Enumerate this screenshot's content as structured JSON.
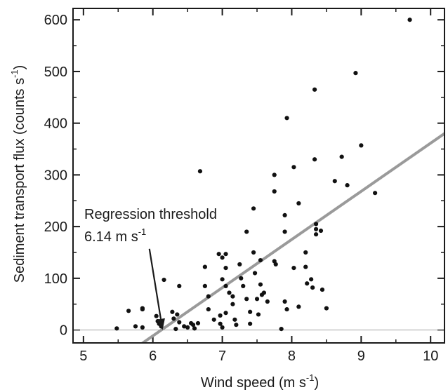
{
  "chart_data": {
    "type": "scatter",
    "xlabel": "Wind speed (m s",
    "xlabel_sup": "-1",
    "xlabel_end": ")",
    "ylabel": "Sediment transport flux (counts s",
    "ylabel_sup": "-1",
    "ylabel_end": ")",
    "xlim": [
      4.85,
      10.2
    ],
    "ylim": [
      -25,
      622
    ],
    "xticks": [
      5,
      6,
      7,
      8,
      9,
      10
    ],
    "xtick_labels": [
      "5",
      "6",
      "7",
      "8",
      "9",
      "10"
    ],
    "yticks": [
      0,
      100,
      200,
      300,
      400,
      500,
      600
    ],
    "ytick_labels": [
      "0",
      "100",
      "200",
      "300",
      "400",
      "500",
      "600"
    ],
    "grid": false,
    "zero_line": true,
    "regression": {
      "x": [
        5.8,
        10.2
      ],
      "y": [
        -30,
        380
      ]
    },
    "annotation": {
      "line1": "Regression threshold",
      "line2": "6.14 m s",
      "line2_sup": "-1",
      "arrow_from": [
        5.95,
        157
      ],
      "arrow_to": [
        6.14,
        0
      ]
    },
    "points": [
      [
        5.48,
        3
      ],
      [
        5.65,
        37
      ],
      [
        5.75,
        7
      ],
      [
        5.85,
        40
      ],
      [
        5.85,
        42
      ],
      [
        5.85,
        5
      ],
      [
        6.05,
        27
      ],
      [
        6.07,
        17
      ],
      [
        6.09,
        12
      ],
      [
        6.12,
        7
      ],
      [
        6.16,
        97
      ],
      [
        6.28,
        35
      ],
      [
        6.3,
        22
      ],
      [
        6.33,
        2
      ],
      [
        6.35,
        30
      ],
      [
        6.38,
        85
      ],
      [
        6.38,
        15
      ],
      [
        6.45,
        7
      ],
      [
        6.5,
        5
      ],
      [
        6.55,
        13
      ],
      [
        6.58,
        10
      ],
      [
        6.6,
        3
      ],
      [
        6.65,
        13
      ],
      [
        6.68,
        307
      ],
      [
        6.75,
        122
      ],
      [
        6.75,
        85
      ],
      [
        6.8,
        65
      ],
      [
        6.8,
        40
      ],
      [
        6.88,
        20
      ],
      [
        6.95,
        147
      ],
      [
        6.97,
        28
      ],
      [
        6.97,
        12
      ],
      [
        7.0,
        140
      ],
      [
        7.0,
        98
      ],
      [
        7.0,
        5
      ],
      [
        7.05,
        147
      ],
      [
        7.05,
        120
      ],
      [
        7.05,
        85
      ],
      [
        7.05,
        33
      ],
      [
        7.1,
        72
      ],
      [
        7.15,
        65
      ],
      [
        7.15,
        50
      ],
      [
        7.18,
        20
      ],
      [
        7.2,
        10
      ],
      [
        7.25,
        127
      ],
      [
        7.27,
        100
      ],
      [
        7.3,
        85
      ],
      [
        7.35,
        190
      ],
      [
        7.35,
        60
      ],
      [
        7.4,
        35
      ],
      [
        7.4,
        12
      ],
      [
        7.45,
        235
      ],
      [
        7.45,
        150
      ],
      [
        7.47,
        110
      ],
      [
        7.5,
        60
      ],
      [
        7.52,
        30
      ],
      [
        7.55,
        135
      ],
      [
        7.55,
        88
      ],
      [
        7.57,
        68
      ],
      [
        7.6,
        72
      ],
      [
        7.65,
        55
      ],
      [
        7.75,
        300
      ],
      [
        7.75,
        268
      ],
      [
        7.75,
        133
      ],
      [
        7.77,
        127
      ],
      [
        7.85,
        2
      ],
      [
        7.9,
        222
      ],
      [
        7.9,
        190
      ],
      [
        7.9,
        55
      ],
      [
        7.93,
        410
      ],
      [
        7.93,
        40
      ],
      [
        8.03,
        315
      ],
      [
        8.03,
        120
      ],
      [
        8.1,
        245
      ],
      [
        8.1,
        45
      ],
      [
        8.2,
        150
      ],
      [
        8.2,
        122
      ],
      [
        8.22,
        90
      ],
      [
        8.28,
        98
      ],
      [
        8.3,
        82
      ],
      [
        8.33,
        465
      ],
      [
        8.33,
        330
      ],
      [
        8.35,
        205
      ],
      [
        8.35,
        195
      ],
      [
        8.35,
        185
      ],
      [
        8.42,
        192
      ],
      [
        8.44,
        78
      ],
      [
        8.5,
        42
      ],
      [
        8.62,
        288
      ],
      [
        8.72,
        335
      ],
      [
        8.8,
        280
      ],
      [
        8.92,
        497
      ],
      [
        9.0,
        357
      ],
      [
        9.2,
        265
      ],
      [
        9.7,
        600
      ]
    ]
  }
}
